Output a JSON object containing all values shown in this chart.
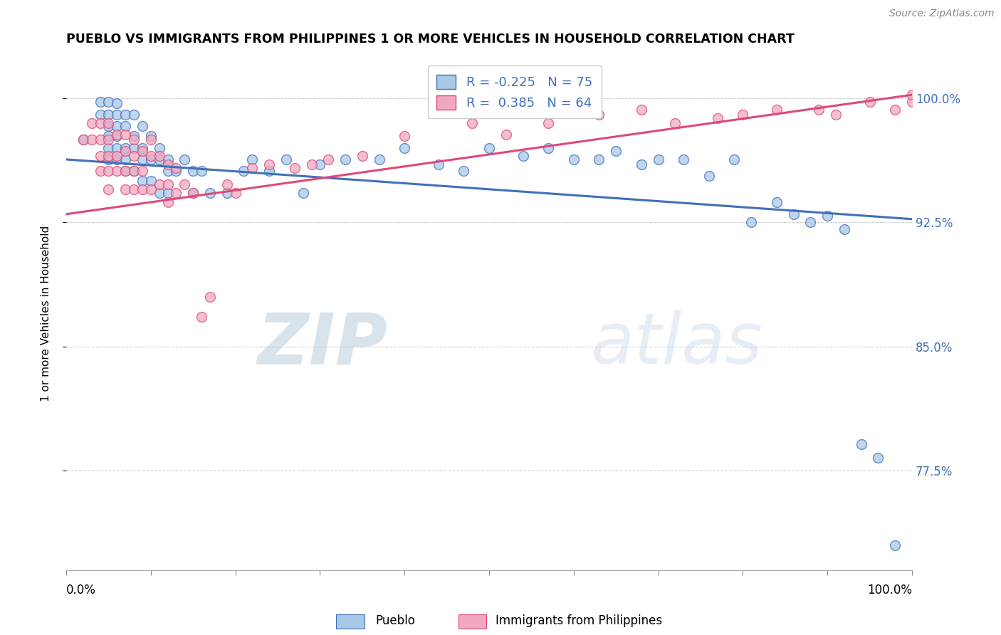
{
  "title": "PUEBLO VS IMMIGRANTS FROM PHILIPPINES 1 OR MORE VEHICLES IN HOUSEHOLD CORRELATION CHART",
  "source": "Source: ZipAtlas.com",
  "ylabel": "1 or more Vehicles in Household",
  "ytick_labels": [
    "77.5%",
    "85.0%",
    "92.5%",
    "100.0%"
  ],
  "ytick_values": [
    0.775,
    0.85,
    0.925,
    1.0
  ],
  "xlim": [
    0.0,
    1.0
  ],
  "ylim": [
    0.715,
    1.025
  ],
  "legend_r_blue": "-0.225",
  "legend_n_blue": "75",
  "legend_r_pink": "0.385",
  "legend_n_pink": "64",
  "blue_color": "#a8c8e8",
  "pink_color": "#f0a8c0",
  "blue_line_color": "#4070b8",
  "pink_line_color": "#e04878",
  "watermark_zip": "ZIP",
  "watermark_atlas": "atlas",
  "blue_line_y0": 0.963,
  "blue_line_y1": 0.927,
  "pink_line_y0": 0.93,
  "pink_line_y1": 1.002,
  "blue_points_x": [
    0.02,
    0.04,
    0.04,
    0.05,
    0.05,
    0.05,
    0.05,
    0.05,
    0.05,
    0.06,
    0.06,
    0.06,
    0.06,
    0.06,
    0.06,
    0.07,
    0.07,
    0.07,
    0.07,
    0.07,
    0.08,
    0.08,
    0.08,
    0.08,
    0.09,
    0.09,
    0.09,
    0.09,
    0.1,
    0.1,
    0.1,
    0.11,
    0.11,
    0.11,
    0.12,
    0.12,
    0.12,
    0.13,
    0.14,
    0.15,
    0.15,
    0.16,
    0.17,
    0.19,
    0.21,
    0.22,
    0.24,
    0.26,
    0.28,
    0.3,
    0.33,
    0.37,
    0.4,
    0.44,
    0.47,
    0.5,
    0.54,
    0.57,
    0.6,
    0.63,
    0.65,
    0.68,
    0.7,
    0.73,
    0.76,
    0.79,
    0.81,
    0.84,
    0.86,
    0.88,
    0.9,
    0.92,
    0.94,
    0.96,
    0.98
  ],
  "blue_points_y": [
    0.975,
    0.998,
    0.99,
    0.998,
    0.99,
    0.983,
    0.977,
    0.97,
    0.963,
    0.997,
    0.99,
    0.983,
    0.977,
    0.97,
    0.963,
    0.99,
    0.983,
    0.97,
    0.963,
    0.956,
    0.99,
    0.977,
    0.97,
    0.956,
    0.983,
    0.97,
    0.963,
    0.95,
    0.977,
    0.963,
    0.95,
    0.97,
    0.963,
    0.943,
    0.963,
    0.956,
    0.943,
    0.956,
    0.963,
    0.956,
    0.943,
    0.956,
    0.943,
    0.943,
    0.956,
    0.963,
    0.956,
    0.963,
    0.943,
    0.96,
    0.963,
    0.963,
    0.97,
    0.96,
    0.956,
    0.97,
    0.965,
    0.97,
    0.963,
    0.963,
    0.968,
    0.96,
    0.963,
    0.963,
    0.953,
    0.963,
    0.925,
    0.937,
    0.93,
    0.925,
    0.929,
    0.921,
    0.791,
    0.783,
    0.73
  ],
  "pink_points_x": [
    0.02,
    0.03,
    0.03,
    0.04,
    0.04,
    0.04,
    0.04,
    0.05,
    0.05,
    0.05,
    0.05,
    0.05,
    0.06,
    0.06,
    0.06,
    0.07,
    0.07,
    0.07,
    0.07,
    0.08,
    0.08,
    0.08,
    0.08,
    0.09,
    0.09,
    0.09,
    0.1,
    0.1,
    0.1,
    0.11,
    0.11,
    0.12,
    0.12,
    0.12,
    0.13,
    0.13,
    0.14,
    0.15,
    0.16,
    0.17,
    0.19,
    0.2,
    0.22,
    0.24,
    0.27,
    0.29,
    0.31,
    0.35,
    0.4,
    0.48,
    0.52,
    0.57,
    0.63,
    0.68,
    0.72,
    0.77,
    0.8,
    0.84,
    0.89,
    0.91,
    0.95,
    0.98,
    1.0,
    1.0
  ],
  "pink_points_y": [
    0.975,
    0.985,
    0.975,
    0.985,
    0.975,
    0.965,
    0.956,
    0.985,
    0.975,
    0.965,
    0.956,
    0.945,
    0.978,
    0.965,
    0.956,
    0.978,
    0.968,
    0.956,
    0.945,
    0.975,
    0.965,
    0.956,
    0.945,
    0.968,
    0.956,
    0.945,
    0.975,
    0.965,
    0.945,
    0.965,
    0.948,
    0.96,
    0.948,
    0.937,
    0.958,
    0.943,
    0.948,
    0.943,
    0.868,
    0.88,
    0.948,
    0.943,
    0.958,
    0.96,
    0.958,
    0.96,
    0.963,
    0.965,
    0.977,
    0.985,
    0.978,
    0.985,
    0.99,
    0.993,
    0.985,
    0.988,
    0.99,
    0.993,
    0.993,
    0.99,
    0.998,
    0.993,
    0.998,
    1.002
  ]
}
